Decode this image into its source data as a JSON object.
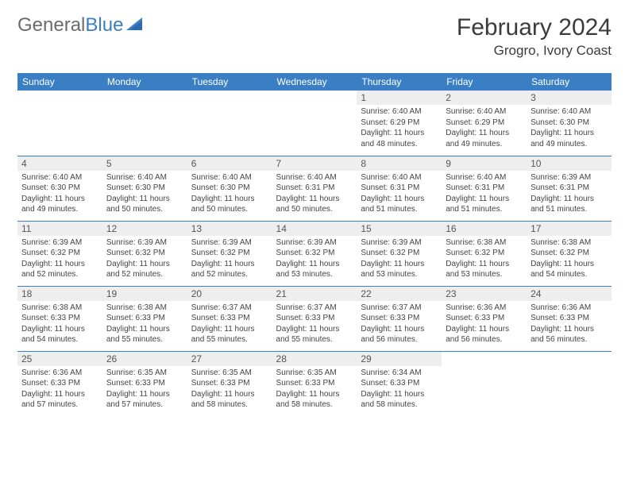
{
  "logo": {
    "textGray": "General",
    "textBlue": "Blue"
  },
  "title": "February 2024",
  "location": "Grogro, Ivory Coast",
  "dayHeaders": [
    "Sunday",
    "Monday",
    "Tuesday",
    "Wednesday",
    "Thursday",
    "Friday",
    "Saturday"
  ],
  "colors": {
    "headerBg": "#3a7fc4",
    "headerText": "#ffffff",
    "dayNumBg": "#eeeeee",
    "borderColor": "#3a7fc4"
  },
  "weeks": [
    [
      null,
      null,
      null,
      null,
      {
        "n": "1",
        "sr": "Sunrise: 6:40 AM",
        "ss": "Sunset: 6:29 PM",
        "dl": "Daylight: 11 hours and 48 minutes."
      },
      {
        "n": "2",
        "sr": "Sunrise: 6:40 AM",
        "ss": "Sunset: 6:29 PM",
        "dl": "Daylight: 11 hours and 49 minutes."
      },
      {
        "n": "3",
        "sr": "Sunrise: 6:40 AM",
        "ss": "Sunset: 6:30 PM",
        "dl": "Daylight: 11 hours and 49 minutes."
      }
    ],
    [
      {
        "n": "4",
        "sr": "Sunrise: 6:40 AM",
        "ss": "Sunset: 6:30 PM",
        "dl": "Daylight: 11 hours and 49 minutes."
      },
      {
        "n": "5",
        "sr": "Sunrise: 6:40 AM",
        "ss": "Sunset: 6:30 PM",
        "dl": "Daylight: 11 hours and 50 minutes."
      },
      {
        "n": "6",
        "sr": "Sunrise: 6:40 AM",
        "ss": "Sunset: 6:30 PM",
        "dl": "Daylight: 11 hours and 50 minutes."
      },
      {
        "n": "7",
        "sr": "Sunrise: 6:40 AM",
        "ss": "Sunset: 6:31 PM",
        "dl": "Daylight: 11 hours and 50 minutes."
      },
      {
        "n": "8",
        "sr": "Sunrise: 6:40 AM",
        "ss": "Sunset: 6:31 PM",
        "dl": "Daylight: 11 hours and 51 minutes."
      },
      {
        "n": "9",
        "sr": "Sunrise: 6:40 AM",
        "ss": "Sunset: 6:31 PM",
        "dl": "Daylight: 11 hours and 51 minutes."
      },
      {
        "n": "10",
        "sr": "Sunrise: 6:39 AM",
        "ss": "Sunset: 6:31 PM",
        "dl": "Daylight: 11 hours and 51 minutes."
      }
    ],
    [
      {
        "n": "11",
        "sr": "Sunrise: 6:39 AM",
        "ss": "Sunset: 6:32 PM",
        "dl": "Daylight: 11 hours and 52 minutes."
      },
      {
        "n": "12",
        "sr": "Sunrise: 6:39 AM",
        "ss": "Sunset: 6:32 PM",
        "dl": "Daylight: 11 hours and 52 minutes."
      },
      {
        "n": "13",
        "sr": "Sunrise: 6:39 AM",
        "ss": "Sunset: 6:32 PM",
        "dl": "Daylight: 11 hours and 52 minutes."
      },
      {
        "n": "14",
        "sr": "Sunrise: 6:39 AM",
        "ss": "Sunset: 6:32 PM",
        "dl": "Daylight: 11 hours and 53 minutes."
      },
      {
        "n": "15",
        "sr": "Sunrise: 6:39 AM",
        "ss": "Sunset: 6:32 PM",
        "dl": "Daylight: 11 hours and 53 minutes."
      },
      {
        "n": "16",
        "sr": "Sunrise: 6:38 AM",
        "ss": "Sunset: 6:32 PM",
        "dl": "Daylight: 11 hours and 53 minutes."
      },
      {
        "n": "17",
        "sr": "Sunrise: 6:38 AM",
        "ss": "Sunset: 6:32 PM",
        "dl": "Daylight: 11 hours and 54 minutes."
      }
    ],
    [
      {
        "n": "18",
        "sr": "Sunrise: 6:38 AM",
        "ss": "Sunset: 6:33 PM",
        "dl": "Daylight: 11 hours and 54 minutes."
      },
      {
        "n": "19",
        "sr": "Sunrise: 6:38 AM",
        "ss": "Sunset: 6:33 PM",
        "dl": "Daylight: 11 hours and 55 minutes."
      },
      {
        "n": "20",
        "sr": "Sunrise: 6:37 AM",
        "ss": "Sunset: 6:33 PM",
        "dl": "Daylight: 11 hours and 55 minutes."
      },
      {
        "n": "21",
        "sr": "Sunrise: 6:37 AM",
        "ss": "Sunset: 6:33 PM",
        "dl": "Daylight: 11 hours and 55 minutes."
      },
      {
        "n": "22",
        "sr": "Sunrise: 6:37 AM",
        "ss": "Sunset: 6:33 PM",
        "dl": "Daylight: 11 hours and 56 minutes."
      },
      {
        "n": "23",
        "sr": "Sunrise: 6:36 AM",
        "ss": "Sunset: 6:33 PM",
        "dl": "Daylight: 11 hours and 56 minutes."
      },
      {
        "n": "24",
        "sr": "Sunrise: 6:36 AM",
        "ss": "Sunset: 6:33 PM",
        "dl": "Daylight: 11 hours and 56 minutes."
      }
    ],
    [
      {
        "n": "25",
        "sr": "Sunrise: 6:36 AM",
        "ss": "Sunset: 6:33 PM",
        "dl": "Daylight: 11 hours and 57 minutes."
      },
      {
        "n": "26",
        "sr": "Sunrise: 6:35 AM",
        "ss": "Sunset: 6:33 PM",
        "dl": "Daylight: 11 hours and 57 minutes."
      },
      {
        "n": "27",
        "sr": "Sunrise: 6:35 AM",
        "ss": "Sunset: 6:33 PM",
        "dl": "Daylight: 11 hours and 58 minutes."
      },
      {
        "n": "28",
        "sr": "Sunrise: 6:35 AM",
        "ss": "Sunset: 6:33 PM",
        "dl": "Daylight: 11 hours and 58 minutes."
      },
      {
        "n": "29",
        "sr": "Sunrise: 6:34 AM",
        "ss": "Sunset: 6:33 PM",
        "dl": "Daylight: 11 hours and 58 minutes."
      },
      null,
      null
    ]
  ]
}
